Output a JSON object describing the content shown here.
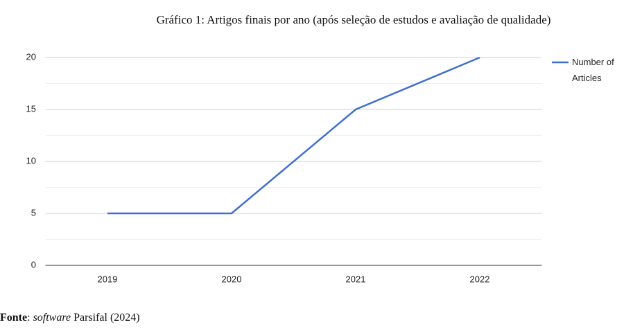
{
  "chart_data": {
    "type": "line",
    "title": "Gráfico 1: Artigos finais por ano (após seleção de estudos e avaliação de qualidade)",
    "categories": [
      "2019",
      "2020",
      "2021",
      "2022"
    ],
    "series": [
      {
        "name": "Number of Articles",
        "color": "#3f6fcf",
        "values": [
          5,
          5,
          15,
          20
        ]
      }
    ],
    "ylim": [
      0,
      20
    ],
    "yticks": [
      0,
      5,
      10,
      15,
      20
    ],
    "grid": true,
    "legend": "right"
  },
  "caption": [
    "Fonte",
    ": ",
    "software",
    " Parsifal (2024)"
  ]
}
